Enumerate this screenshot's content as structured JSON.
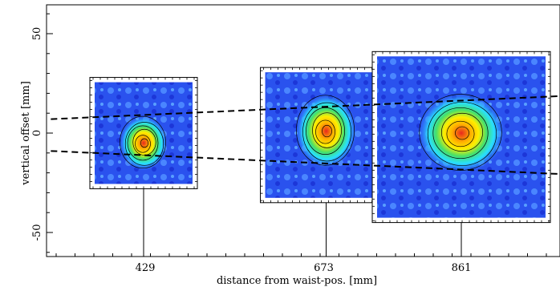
{
  "chart_data": {
    "type": "heatmap",
    "title": "",
    "xlabel": "distance from waist-pos. [mm]",
    "ylabel": "vertical offset [mm]",
    "x_ticks": [
      429,
      673,
      861
    ],
    "y_ticks": [
      -50,
      0,
      50
    ],
    "ylim": [
      -65,
      65
    ],
    "grid": false,
    "profiles": [
      {
        "x": 429,
        "y_range": [
          -28,
          28
        ],
        "peak_y": -5,
        "shape": "compact round spot"
      },
      {
        "x": 673,
        "y_range": [
          -35,
          33
        ],
        "peak_y": 1,
        "shape": "larger elliptical spot"
      },
      {
        "x": 861,
        "y_range": [
          -45,
          41
        ],
        "peak_y": 0,
        "shape": "broad speckled spot"
      }
    ],
    "dashed_lines": [
      {
        "name": "upper envelope",
        "x": [
          300,
          1020
        ],
        "y": [
          7,
          19
        ]
      },
      {
        "name": "lower envelope",
        "x": [
          300,
          1020
        ],
        "y": [
          -9,
          -21
        ]
      }
    ],
    "colors": {
      "background": "#1f3fe6",
      "low": "#3a78ff",
      "mid": "#28e0ff",
      "high": "#ffee00",
      "peak": "#e8281e"
    }
  }
}
